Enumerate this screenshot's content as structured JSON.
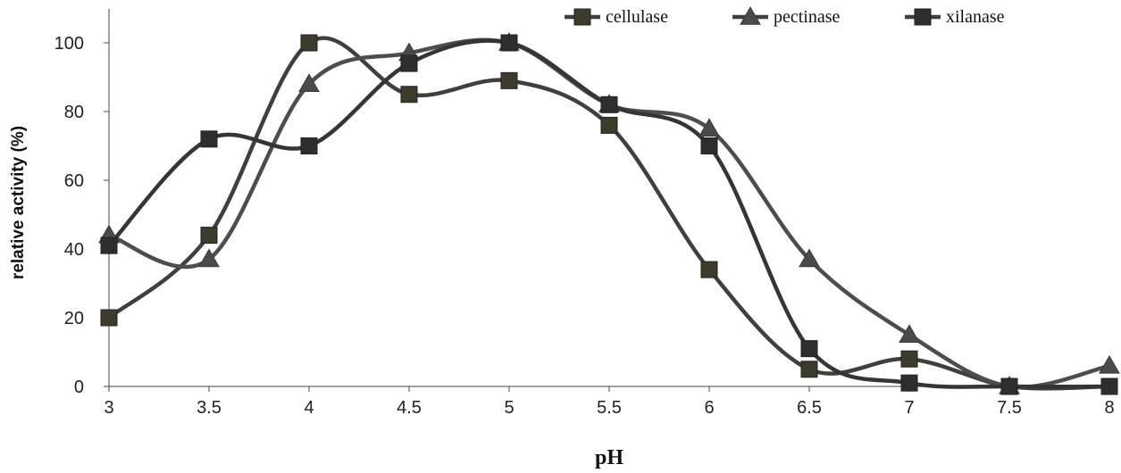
{
  "chart_data": {
    "type": "line",
    "title": "",
    "xlabel": "pH",
    "ylabel": "relative activity (%)",
    "x": [
      3,
      3.5,
      4,
      4.5,
      5,
      5.5,
      6,
      6.5,
      7,
      7.5,
      8
    ],
    "x_tick_labels": [
      "3",
      "3.5",
      "4",
      "4.5",
      "5",
      "5.5",
      "6",
      "6.5",
      "7",
      "7.5",
      "8"
    ],
    "y_tick_labels": [
      "0",
      "20",
      "40",
      "60",
      "80",
      "100"
    ],
    "xlim": [
      3,
      8
    ],
    "ylim": [
      0,
      100
    ],
    "grid": false,
    "legend_position": "top-right",
    "series": [
      {
        "name": "cellulase",
        "marker": "square",
        "color": "#3d3b2c",
        "values": [
          20,
          44,
          100,
          85,
          89,
          76,
          34,
          5,
          8,
          0,
          0
        ]
      },
      {
        "name": "pectinase",
        "marker": "triangle",
        "color": "#4a4a48",
        "values": [
          44,
          37,
          88,
          97,
          100,
          82,
          75,
          37,
          15,
          0,
          6
        ]
      },
      {
        "name": "xilanase",
        "marker": "square",
        "color": "#2e2e2e",
        "values": [
          41,
          72,
          70,
          94,
          100,
          82,
          70,
          11,
          1,
          0,
          0
        ]
      }
    ]
  }
}
